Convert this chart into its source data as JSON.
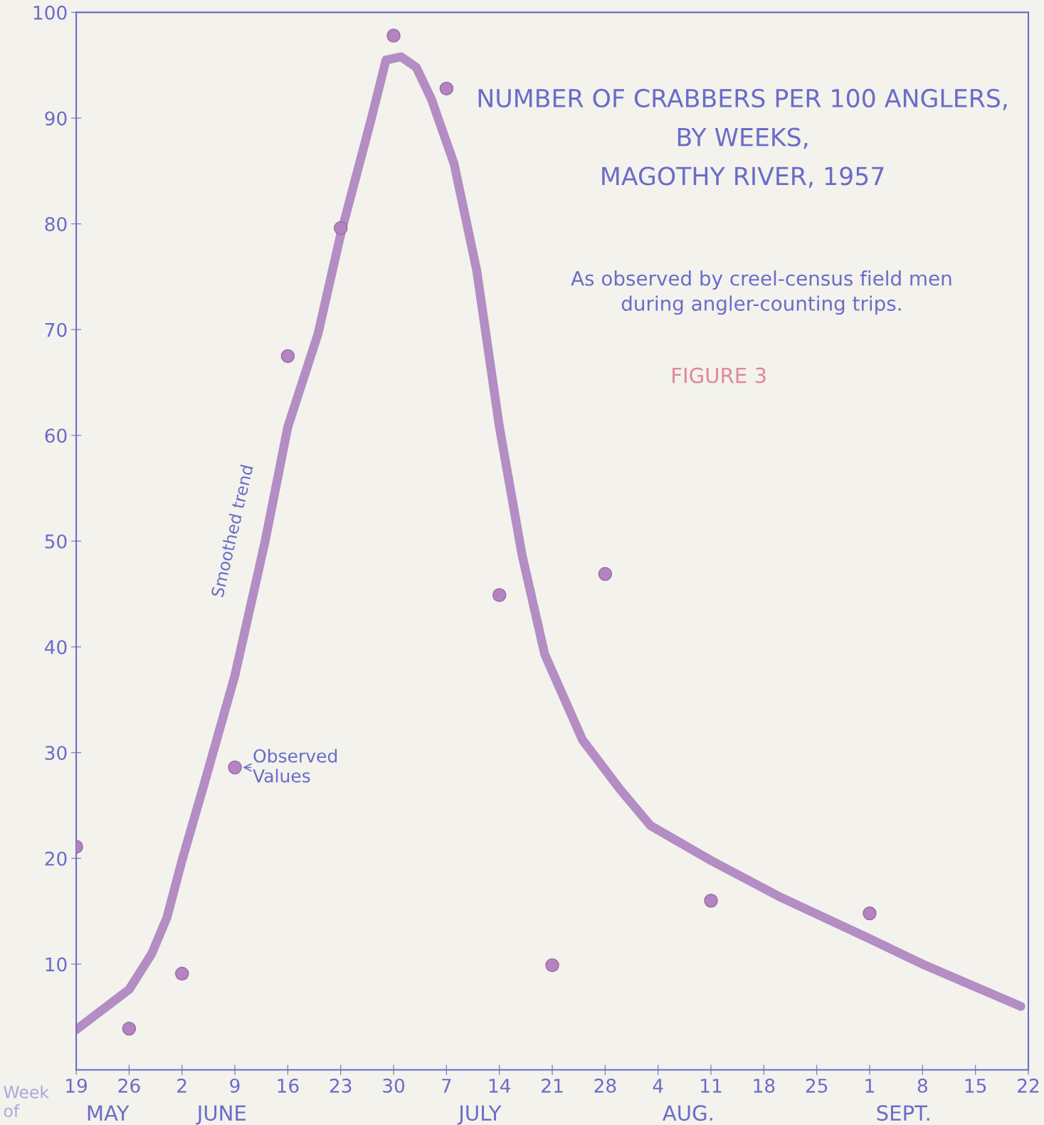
{
  "chart_data": {
    "type": "line",
    "title": "NUMBER OF CRABBERS PER 100 ANGLERS,\nBY WEEKS,\nMAGOTHY RIVER, 1957",
    "subtitle": "As observed by creel-census field men\nduring angler-counting trips.",
    "xlabel": "Week of",
    "annotations": [
      "FIGURE 3",
      "MAY",
      "JUNE",
      "JULY",
      "AUG.",
      "SEPT."
    ],
    "series": [
      {
        "name": "Smoothed trend",
        "marker": "none",
        "color": "#a77bbd",
        "x": [
          "1957-05-19",
          "1957-05-26",
          "1957-05-29",
          "1957-05-31",
          "1957-06-02",
          "1957-06-05",
          "1957-06-09",
          "1957-06-13",
          "1957-06-16",
          "1957-06-20",
          "1957-06-23",
          "1957-06-27",
          "1957-06-29",
          "1957-07-01",
          "1957-07-03",
          "1957-07-05",
          "1957-07-08",
          "1957-07-11",
          "1957-07-14",
          "1957-07-17",
          "1957-07-20",
          "1957-07-25",
          "1957-07-30",
          "1957-08-03",
          "1957-08-11",
          "1957-08-20",
          "1957-09-01",
          "1957-09-08",
          "1957-09-21"
        ],
        "values": [
          3.8,
          7.6,
          11.0,
          14.4,
          19.8,
          27.2,
          37.3,
          50.0,
          60.8,
          69.6,
          79.0,
          89.8,
          95.5,
          95.8,
          94.8,
          91.8,
          85.7,
          75.6,
          60.8,
          48.7,
          39.3,
          31.2,
          26.5,
          23.1,
          19.8,
          16.4,
          12.4,
          10.0,
          6.0
        ]
      },
      {
        "name": "Observed Values",
        "type": "scatter",
        "marker": "circle",
        "color": "#b483c0",
        "x": [
          "1957-05-19",
          "1957-05-26",
          "1957-06-02",
          "1957-06-09",
          "1957-06-16",
          "1957-06-23",
          "1957-06-30",
          "1957-07-07",
          "1957-07-14",
          "1957-07-21",
          "1957-07-28",
          "1957-08-11",
          "1957-09-01"
        ],
        "values": [
          21.1,
          3.9,
          9.1,
          28.6,
          67.5,
          79.6,
          97.8,
          92.8,
          44.9,
          9.9,
          46.9,
          16.0,
          14.8
        ]
      }
    ],
    "xlim": [
      "1957-05-19",
      "1957-09-22"
    ],
    "xticks": [
      {
        "value": "1957-05-19",
        "label": "19"
      },
      {
        "value": "1957-05-26",
        "label": "26"
      },
      {
        "value": "1957-06-02",
        "label": "2"
      },
      {
        "value": "1957-06-09",
        "label": "9"
      },
      {
        "value": "1957-06-16",
        "label": "16"
      },
      {
        "value": "1957-06-23",
        "label": "23"
      },
      {
        "value": "1957-06-30",
        "label": "30"
      },
      {
        "value": "1957-07-07",
        "label": "7"
      },
      {
        "value": "1957-07-14",
        "label": "14"
      },
      {
        "value": "1957-07-21",
        "label": "21"
      },
      {
        "value": "1957-07-28",
        "label": "28"
      },
      {
        "value": "1957-08-04",
        "label": "4"
      },
      {
        "value": "1957-08-11",
        "label": "11"
      },
      {
        "value": "1957-08-18",
        "label": "18"
      },
      {
        "value": "1957-08-25",
        "label": "25"
      },
      {
        "value": "1957-09-01",
        "label": "1"
      },
      {
        "value": "1957-09-08",
        "label": "8"
      },
      {
        "value": "1957-09-15",
        "label": "15"
      },
      {
        "value": "1957-09-22",
        "label": "22"
      }
    ],
    "ylim": [
      0,
      100
    ],
    "yticks": [
      10,
      20,
      30,
      40,
      50,
      60,
      70,
      80,
      90,
      100
    ],
    "grid": false,
    "legend": false
  }
}
